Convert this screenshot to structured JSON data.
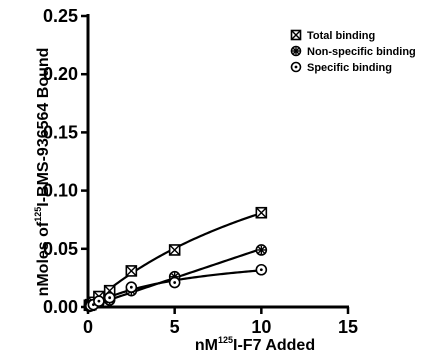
{
  "chart_data": {
    "type": "scatter",
    "xlabel": {
      "prefix": "nM",
      "sup": "125",
      "suffix": "I-F7 Added"
    },
    "ylabel": {
      "prefix": "nMoles of",
      "sup": "125",
      "suffix": "I-BMS-936564 Bound"
    },
    "xlim": [
      0,
      15
    ],
    "ylim": [
      0,
      0.25
    ],
    "x_ticks": [
      0,
      5,
      10,
      15
    ],
    "x_tick_labels": [
      "0",
      "5",
      "10",
      "15"
    ],
    "y_ticks": [
      0,
      0.05,
      0.1,
      0.15,
      0.2,
      0.25
    ],
    "y_tick_labels": [
      "0.00",
      "0.05",
      "0.10",
      "0.15",
      "0.20",
      "0.25"
    ],
    "legend_position": "top-right",
    "grid": false,
    "series": [
      {
        "name": "Total binding",
        "marker": "boxed-x",
        "x": [
          0.08,
          0.16,
          0.31,
          0.63,
          1.25,
          2.5,
          5,
          10
        ],
        "y": [
          0.0015,
          0.002,
          0.004,
          0.009,
          0.014,
          0.031,
          0.049,
          0.081
        ],
        "curve": "hyperbolic"
      },
      {
        "name": "Non-specific binding",
        "marker": "circled-asterisk",
        "x": [
          0.08,
          0.16,
          0.31,
          0.63,
          1.25,
          2.5,
          5,
          10
        ],
        "y": [
          0.0005,
          0.001,
          0.002,
          0.004,
          0.006,
          0.014,
          0.026,
          0.049
        ],
        "curve": "linear"
      },
      {
        "name": "Specific binding",
        "marker": "circled-dot",
        "x": [
          0.08,
          0.16,
          0.31,
          0.63,
          1.25,
          2.5,
          5,
          10
        ],
        "y": [
          0.001,
          0.001,
          0.002,
          0.005,
          0.008,
          0.017,
          0.021,
          0.032
        ],
        "curve": "hyperbolic"
      }
    ]
  }
}
